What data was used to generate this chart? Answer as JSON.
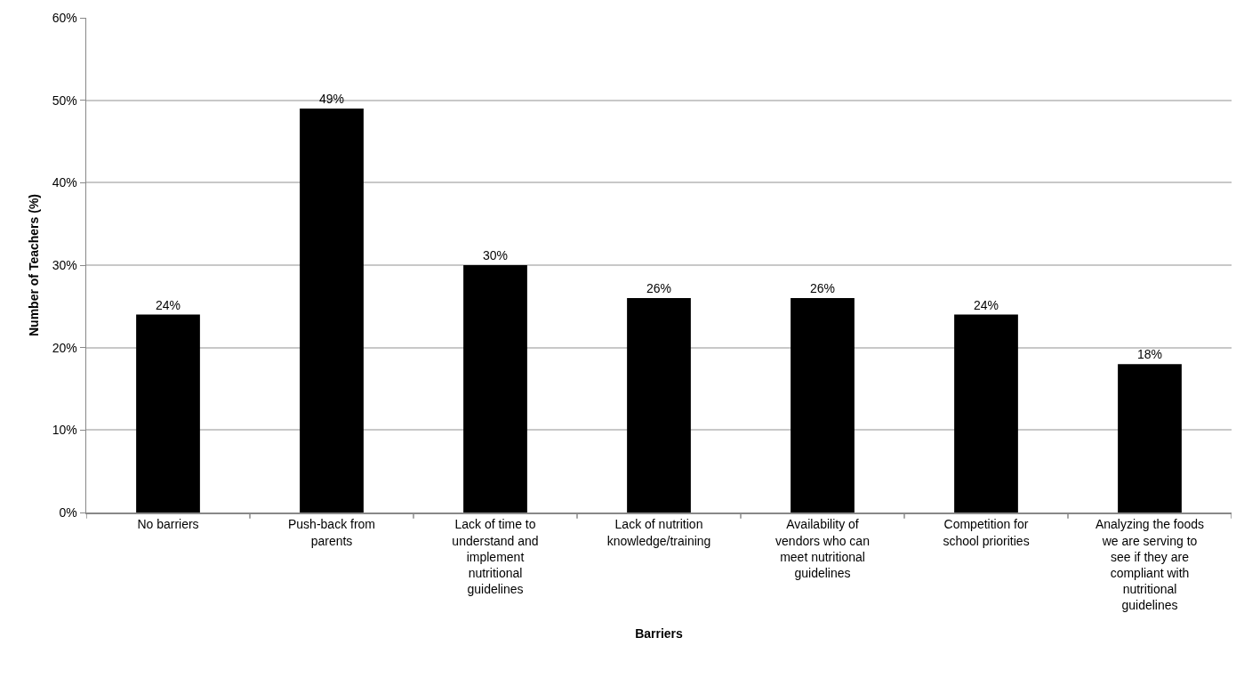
{
  "chart_data": {
    "type": "bar",
    "xlabel": "Barriers",
    "ylabel": "Number of Teachers (%)",
    "categories": [
      "No barriers",
      "Push-back from parents",
      "Lack of time to understand and implement nutritional guidelines",
      "Lack of nutrition knowledge/training",
      "Availability of vendors who can meet nutritional guidelines",
      "Competition for school priorities",
      "Analyzing the foods we are serving to see if they are compliant with nutritional guidelines"
    ],
    "values": [
      24,
      49,
      30,
      26,
      26,
      24,
      18
    ],
    "value_labels": [
      "24%",
      "49%",
      "30%",
      "26%",
      "26%",
      "24%",
      "18%"
    ],
    "color": "#000000",
    "ylim": [
      0,
      60
    ],
    "yticks": [
      {
        "value": 0,
        "label": "0%"
      },
      {
        "value": 10,
        "label": "10%"
      },
      {
        "value": 20,
        "label": "20%"
      },
      {
        "value": 30,
        "label": "30%"
      },
      {
        "value": 40,
        "label": "40%"
      },
      {
        "value": 50,
        "label": "50%"
      },
      {
        "value": 60,
        "label": "60%"
      }
    ],
    "grid": "y",
    "legend": false
  }
}
